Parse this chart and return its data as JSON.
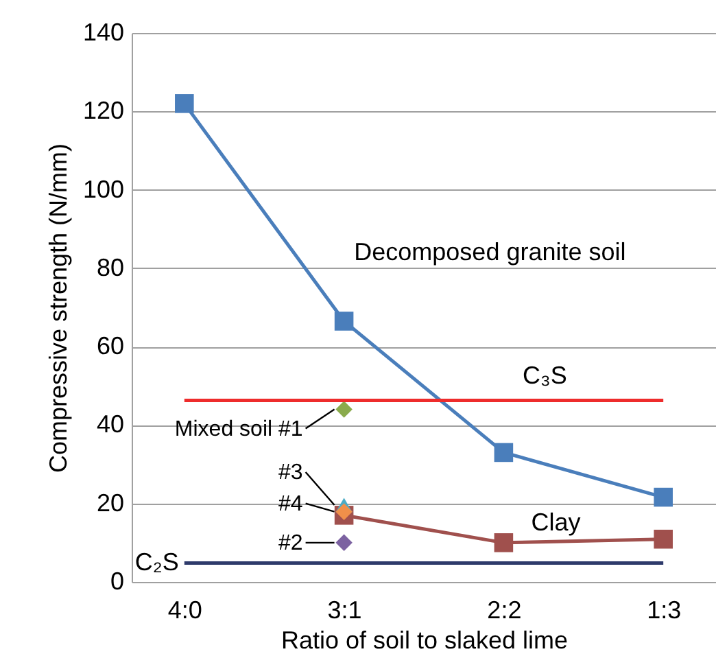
{
  "chart_data": {
    "type": "line",
    "xlabel": "Ratio of soil to slaked lime",
    "ylabel": "Compressive strength (N/mm)",
    "categories": [
      "4:0",
      "3:1",
      "2:2",
      "1:3"
    ],
    "ylim": [
      0,
      140
    ],
    "yticks": [
      0,
      20,
      40,
      60,
      80,
      100,
      120,
      140
    ],
    "grid": "y",
    "series": [
      {
        "name": "Decomposed granite soil",
        "marker": "square",
        "color": "#4a7ebb",
        "values": [
          122,
          66.5,
          33,
          21.6
        ]
      },
      {
        "name": "Clay",
        "marker": "square",
        "color": "#a0504d",
        "values": [
          null,
          17,
          10,
          10.9
        ]
      },
      {
        "name": "Mixed soil #1",
        "type": "scatter",
        "marker": "diamond",
        "color": "#8aab4c",
        "x": [
          "3:1"
        ],
        "values": [
          44
        ]
      },
      {
        "name": "#2",
        "type": "scatter",
        "marker": "diamond",
        "color": "#7c62a1",
        "x": [
          "3:1"
        ],
        "values": [
          10
        ]
      },
      {
        "name": "#3",
        "type": "scatter",
        "marker": "triangle",
        "color": "#4bacc6",
        "x": [
          "3:1"
        ],
        "values": [
          19.6
        ]
      },
      {
        "name": "#4",
        "type": "scatter",
        "marker": "diamond",
        "color": "#f0904a",
        "x": [
          "3:1"
        ],
        "values": [
          17.9
        ]
      }
    ],
    "ref_lines": [
      {
        "axis": "y",
        "value": 46.3,
        "label": "C₃S",
        "color": "#ee2c2c"
      },
      {
        "axis": "y",
        "value": 4.8,
        "label": "C₂S",
        "color": "#2e3a6b"
      }
    ]
  }
}
